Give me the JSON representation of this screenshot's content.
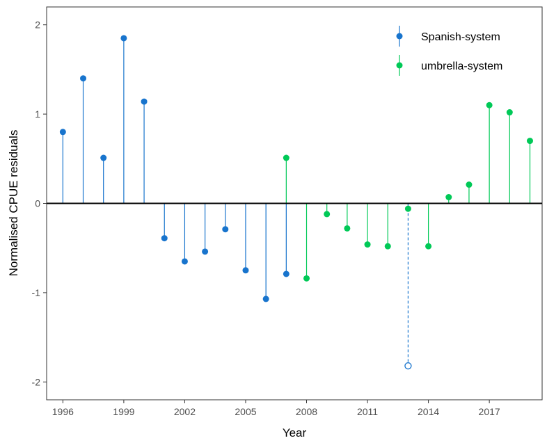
{
  "chart_data": {
    "type": "scatter",
    "style": "lollipop",
    "title": "",
    "xlabel": "Year",
    "ylabel": "Normalised CPUE residuals",
    "xlim": [
      1995.2,
      2019.6
    ],
    "ylim": [
      -2.2,
      2.2
    ],
    "x_ticks": [
      1996,
      1999,
      2002,
      2005,
      2008,
      2011,
      2014,
      2017
    ],
    "y_ticks": [
      -2,
      -1,
      0,
      1,
      2
    ],
    "baseline": 0,
    "grid": false,
    "legend_position": "top-right",
    "colors": {
      "Spanish-system": "#1874CD",
      "umbrella-system": "#00C957",
      "zero_line": "#000000"
    },
    "series": [
      {
        "name": "Spanish-system",
        "x": [
          1996,
          1997,
          1998,
          1999,
          2000,
          2001,
          2002,
          2003,
          2004,
          2005,
          2006,
          2007
        ],
        "y": [
          0.8,
          1.4,
          0.51,
          1.85,
          1.14,
          -0.39,
          -0.65,
          -0.54,
          -0.29,
          -0.75,
          -1.07,
          -0.79
        ]
      },
      {
        "name": "umbrella-system",
        "x": [
          2007,
          2008,
          2009,
          2010,
          2011,
          2012,
          2013,
          2014,
          2015,
          2016,
          2017,
          2018,
          2019
        ],
        "y": [
          0.51,
          -0.84,
          -0.12,
          -0.28,
          -0.46,
          -0.48,
          -0.06,
          -0.48,
          0.07,
          0.21,
          1.1,
          1.02,
          0.7
        ]
      },
      {
        "name": "",
        "marker": "open-circle",
        "line_style": "dashed",
        "color": "#1874CD",
        "x": [
          2013
        ],
        "y": [
          -1.82
        ]
      }
    ]
  }
}
